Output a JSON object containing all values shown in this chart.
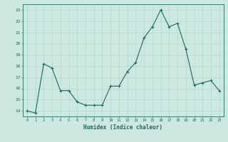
{
  "x": [
    0,
    1,
    2,
    3,
    4,
    5,
    6,
    7,
    8,
    9,
    10,
    11,
    12,
    13,
    14,
    15,
    16,
    17,
    18,
    19,
    20,
    21,
    22,
    23
  ],
  "y": [
    14.0,
    13.8,
    18.2,
    17.8,
    15.8,
    15.8,
    14.8,
    14.5,
    14.5,
    14.5,
    16.2,
    16.2,
    17.5,
    18.3,
    20.5,
    21.5,
    23.0,
    21.5,
    21.8,
    19.5,
    16.3,
    16.5,
    16.7,
    15.8
  ],
  "xlabel": "Humidex (Indice chaleur)",
  "ylim": [
    13.5,
    23.5
  ],
  "xlim": [
    -0.5,
    23.5
  ],
  "yticks": [
    14,
    15,
    16,
    17,
    18,
    19,
    20,
    21,
    22,
    23
  ],
  "xticks": [
    0,
    1,
    2,
    3,
    4,
    5,
    6,
    7,
    8,
    9,
    10,
    11,
    12,
    13,
    14,
    15,
    16,
    17,
    18,
    19,
    20,
    21,
    22,
    23
  ],
  "line_color": "#1a6b5a",
  "marker_color": "#1a6b5a",
  "bg_color": "#cce8e0",
  "grid_color": "#afd4cb",
  "axis_color": "#1a6b5a",
  "label_color": "#1a6b5a",
  "tick_color": "#1a6b5a",
  "font_family": "monospace"
}
